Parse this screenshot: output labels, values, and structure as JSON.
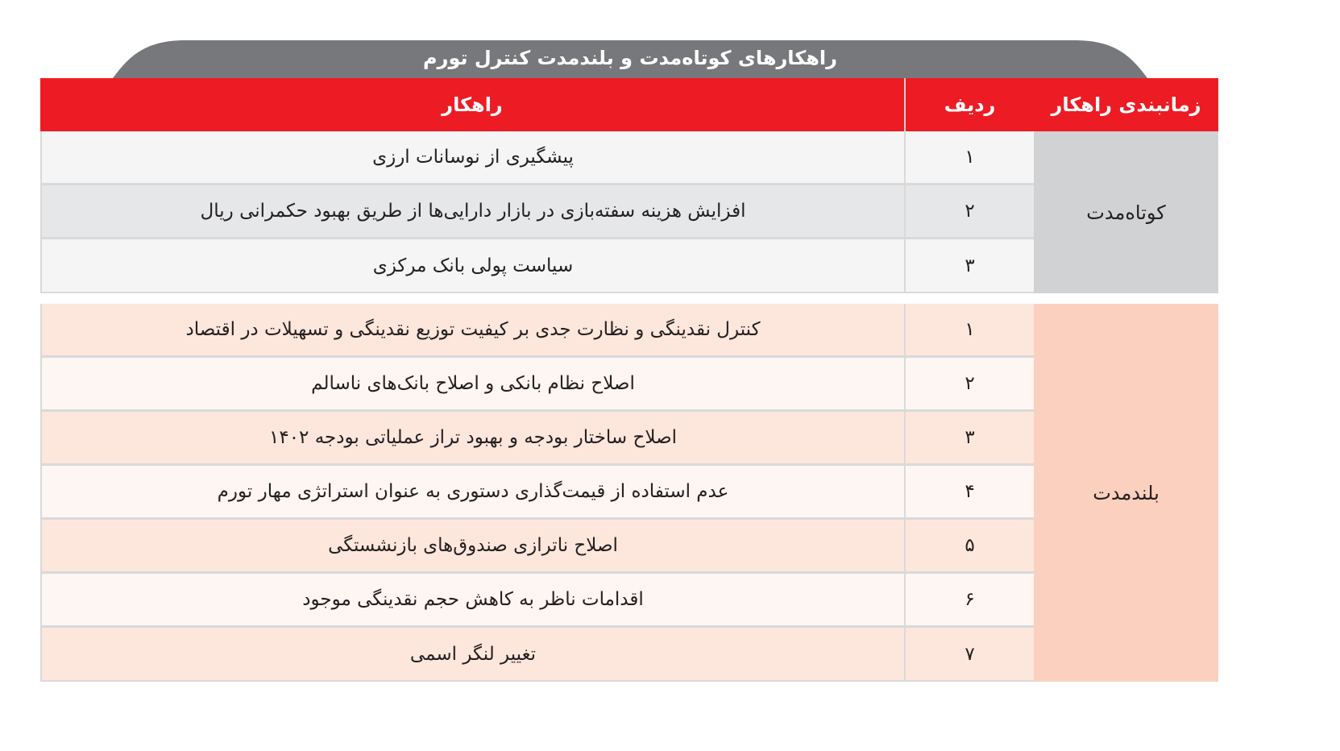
{
  "title": "راهکارهای کوتاه‌مدت و بلندمدت کنترل تورم",
  "headers": {
    "timing": "زمانبندی راهکار",
    "row": "ردیف",
    "solution": "راهکار"
  },
  "colors": {
    "header": "#ed1c24",
    "title_tab": "#77787b",
    "short_group": "#d1d2d4",
    "long_group": "#fbd0bf"
  },
  "groups": [
    {
      "label": "کوتاه‌مدت",
      "rows": [
        {
          "num": "۱",
          "text": "پیشگیری از نوسانات ارزی"
        },
        {
          "num": "۲",
          "text": "افزایش هزینه سفته‌بازی در بازار دارایی‌ها از طریق بهبود حکمرانی ریال"
        },
        {
          "num": "۳",
          "text": "سیاست پولی بانک مرکزی"
        }
      ]
    },
    {
      "label": "بلندمدت",
      "rows": [
        {
          "num": "۱",
          "text": "کنترل نقدینگی و نظارت جدی بر کیفیت توزیع نقدینگی و تسهیلات در اقتصاد"
        },
        {
          "num": "۲",
          "text": "اصلاح نظام بانکی و اصلاح بانک‌های ناسالم"
        },
        {
          "num": "۳",
          "text": "اصلاح ساختار بودجه و بهبود تراز عملیاتی بودجه ۱۴۰۲"
        },
        {
          "num": "۴",
          "text": "عدم استفاده از قیمت‌گذاری دستوری به عنوان استراتژی مهار تورم"
        },
        {
          "num": "۵",
          "text": "اصلاح ناترازی صندوق‌های بازنشستگی"
        },
        {
          "num": "۶",
          "text": "اقدامات ناظر به کاهش حجم نقدینگی موجود"
        },
        {
          "num": "۷",
          "text": "تغییر لنگر اسمی"
        }
      ]
    }
  ]
}
